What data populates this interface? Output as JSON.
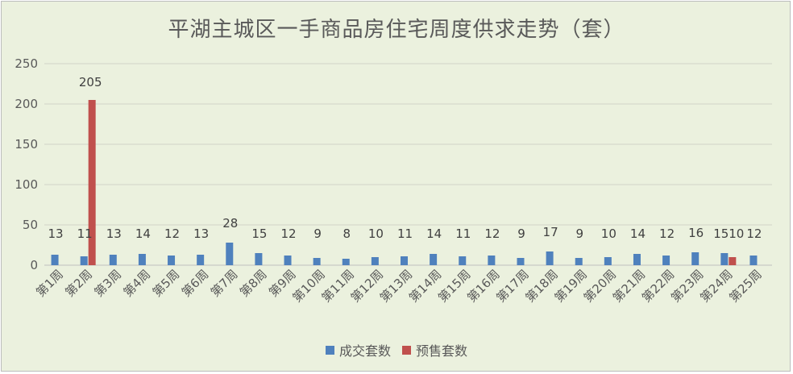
{
  "chart_data": {
    "type": "bar",
    "title": "平湖主城区一手商品房住宅周度供求走势（套）",
    "categories": [
      "第1周",
      "第2周",
      "第3周",
      "第4周",
      "第5周",
      "第6周",
      "第7周",
      "第8周",
      "第9周",
      "第10周",
      "第11周",
      "第12周",
      "第13周",
      "第14周",
      "第15周",
      "第16周",
      "第17周",
      "第18周",
      "第19周",
      "第20周",
      "第21周",
      "第22周",
      "第23周",
      "第24周",
      "第25周"
    ],
    "series": [
      {
        "name": "成交套数",
        "color": "#4f81bd",
        "values": [
          13,
          11,
          13,
          14,
          12,
          13,
          28,
          15,
          12,
          9,
          8,
          10,
          11,
          14,
          11,
          12,
          9,
          17,
          9,
          10,
          14,
          12,
          16,
          15,
          12
        ]
      },
      {
        "name": "预售套数",
        "color": "#c0504d",
        "values": [
          null,
          205,
          null,
          null,
          null,
          null,
          null,
          null,
          null,
          null,
          null,
          null,
          null,
          null,
          null,
          null,
          null,
          null,
          null,
          null,
          null,
          null,
          null,
          10,
          null
        ]
      }
    ],
    "yticks": [
      0,
      50,
      100,
      150,
      200,
      250
    ],
    "ylim": [
      0,
      250
    ],
    "grid": true,
    "legend": "bottom"
  }
}
